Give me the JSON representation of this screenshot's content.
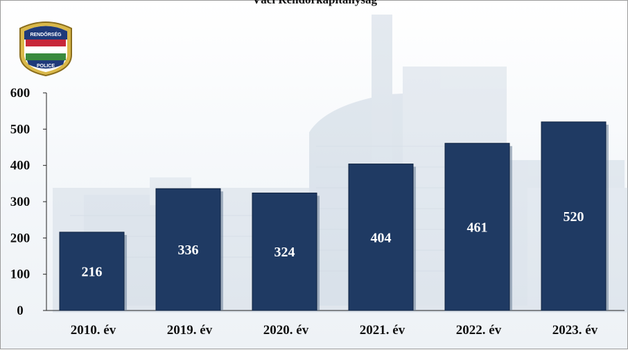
{
  "chart_data": {
    "type": "bar",
    "title": "Váci Rendőrkapitányság",
    "categories": [
      "2010. év",
      "2019. év",
      "2020. év",
      "2021. év",
      "2022. év",
      "2023. év"
    ],
    "values": [
      216,
      336,
      324,
      404,
      461,
      520
    ],
    "ylim": [
      0,
      600
    ],
    "yticks": [
      "0",
      "100",
      "200",
      "300",
      "400",
      "500",
      "600"
    ],
    "xlabel": "",
    "ylabel": "",
    "grid": false,
    "legend": "none",
    "colors": {
      "bar": "#1f3a63",
      "bar_edge": "#0f2340",
      "axis": "#222222",
      "label": "#ffffff"
    }
  },
  "logo": {
    "top_text": "RENDŐRSÉG",
    "bottom_text": "POLICE"
  }
}
